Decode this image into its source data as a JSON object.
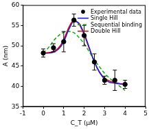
{
  "chart_data": {
    "type": "line",
    "x_label": "C_T (μM)",
    "y_label": "A (nm)",
    "xlim": [
      -1,
      5
    ],
    "xticks": [
      -1,
      0,
      1,
      2,
      3,
      4,
      5
    ],
    "ylim": [
      35,
      60
    ],
    "yticks": [
      35,
      40,
      45,
      50,
      55,
      60
    ],
    "grid": false,
    "legend": "top-right",
    "series": [
      {
        "name": "Experimental data",
        "type": "scatter",
        "marker": "circle",
        "color": "#000000",
        "x": [
          0,
          0.5,
          1,
          1.5,
          2,
          2.5,
          3,
          3.5,
          4
        ],
        "values": [
          48.2,
          49.5,
          51,
          56.3,
          52.5,
          46,
          41.5,
          41.5,
          40.5
        ],
        "errors": [
          1,
          1,
          2.5,
          1.5,
          2.5,
          2,
          1,
          2.5,
          1
        ]
      },
      {
        "name": "Single Hill",
        "type": "line",
        "line_style": "solid",
        "color": "#1f1fcf",
        "x": [
          0,
          0.25,
          0.5,
          0.75,
          1,
          1.25,
          1.5,
          1.75,
          2,
          2.25,
          2.5,
          2.75,
          3,
          3.25,
          3.5,
          3.75,
          4
        ],
        "values": [
          48.2,
          48.2,
          48.4,
          49.2,
          51,
          54,
          56,
          55.5,
          53,
          49.5,
          46,
          43.5,
          41.8,
          41,
          40.8,
          40.6,
          40.5
        ]
      },
      {
        "name": "Sequential binding",
        "type": "line",
        "line_style": "dashed",
        "color": "#1fa81f",
        "x": [
          0,
          0.25,
          0.5,
          0.75,
          1,
          1.25,
          1.5,
          1.75,
          2,
          2.25,
          2.5,
          2.75,
          3,
          3.25,
          3.5,
          3.75,
          4
        ],
        "values": [
          48.2,
          49.5,
          51.2,
          52.5,
          53.3,
          53.5,
          53.2,
          52,
          50.5,
          48.5,
          46.5,
          44.8,
          43.2,
          42,
          41,
          40,
          39
        ]
      },
      {
        "name": "Double Hill",
        "type": "line",
        "line_style": "solid",
        "color": "#d01010",
        "x": [
          0,
          0.25,
          0.5,
          0.75,
          1,
          1.25,
          1.5,
          1.75,
          2,
          2.25,
          2.5,
          2.75,
          3,
          3.25,
          3.5,
          3.75,
          4
        ],
        "values": [
          48.2,
          48.3,
          48.6,
          49.5,
          51.5,
          54.5,
          56.3,
          55.3,
          52.7,
          49.3,
          46,
          43.5,
          42,
          41.3,
          41,
          40.7,
          40.5
        ]
      }
    ]
  }
}
